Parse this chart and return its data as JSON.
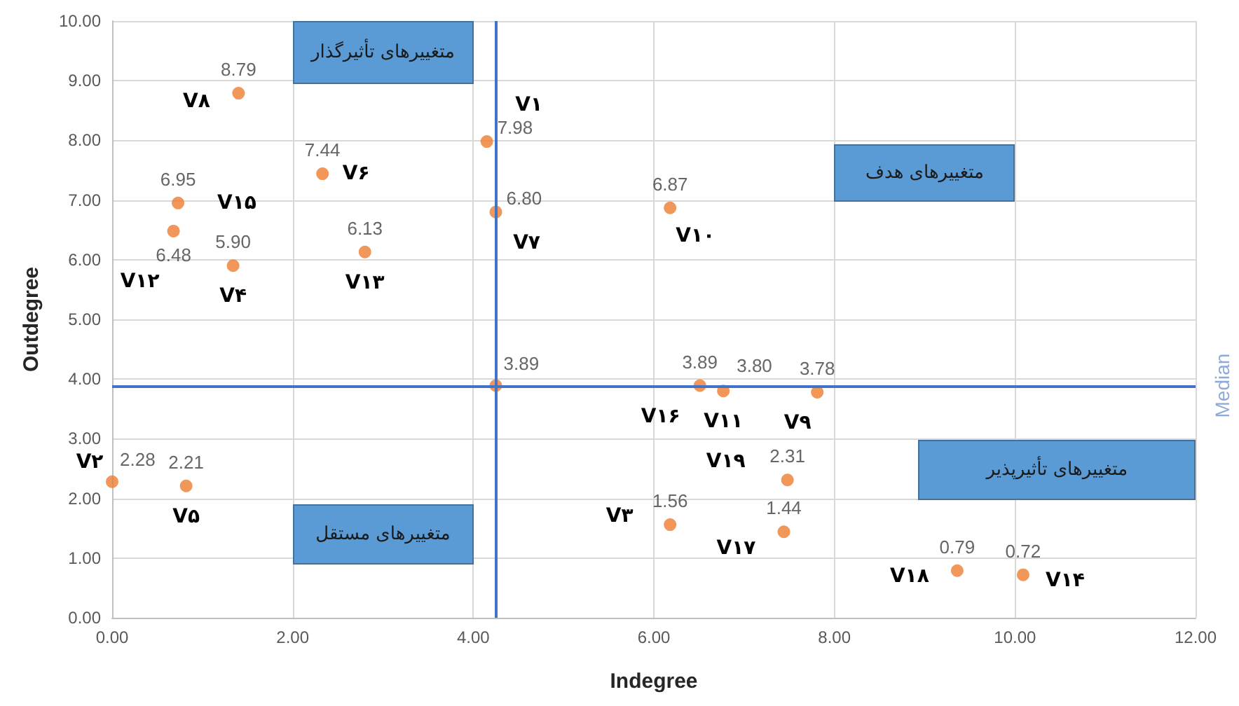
{
  "chart_data": {
    "type": "scatter",
    "xlabel": "Indegree",
    "ylabel": "Outdegree",
    "x": [
      1.4,
      4.15,
      2.33,
      4.25,
      0.73,
      0.68,
      1.34,
      2.8,
      6.18,
      4.25,
      6.51,
      6.77,
      7.81,
      7.48,
      6.18,
      7.44,
      9.36,
      10.09,
      0.0,
      0.82
    ],
    "values": [
      8.79,
      7.98,
      7.44,
      6.8,
      6.95,
      6.48,
      5.9,
      6.13,
      6.87,
      3.89,
      3.89,
      3.8,
      3.78,
      2.31,
      1.56,
      1.44,
      0.79,
      0.72,
      2.28,
      2.21
    ],
    "value_labels": [
      "8.79",
      "7.98",
      "7.44",
      "6.80",
      "6.95",
      "6.48",
      "5.90",
      "6.13",
      "6.87",
      "3.89",
      "3.89",
      "3.80",
      "3.78",
      "2.31",
      "1.56",
      "1.44",
      "0.79",
      "0.72",
      "2.28",
      "2.21"
    ],
    "color": "#ed7d31",
    "marker": "circle",
    "grid": true,
    "xlim": [
      0,
      12
    ],
    "xticks": [
      {
        "value": 0,
        "label": "0.00"
      },
      {
        "value": 2,
        "label": "2.00"
      },
      {
        "value": 4,
        "label": "4.00"
      },
      {
        "value": 6,
        "label": "6.00"
      },
      {
        "value": 8,
        "label": "8.00"
      },
      {
        "value": 10,
        "label": "10.00"
      },
      {
        "value": 12,
        "label": "12.00"
      }
    ],
    "ylim": [
      0,
      10
    ],
    "yticks": [
      {
        "value": 0,
        "label": "0.00"
      },
      {
        "value": 1,
        "label": "1.00"
      },
      {
        "value": 2,
        "label": "2.00"
      },
      {
        "value": 3,
        "label": "3.00"
      },
      {
        "value": 4,
        "label": "4.00"
      },
      {
        "value": 5,
        "label": "5.00"
      },
      {
        "value": 6,
        "label": "6.00"
      },
      {
        "value": 7,
        "label": "7.00"
      },
      {
        "value": 8,
        "label": "8.00"
      },
      {
        "value": 9,
        "label": "9.00"
      },
      {
        "value": 10,
        "label": "10.00"
      }
    ],
    "ref_lines": [
      {
        "axis": "x",
        "value": 4.25,
        "color": "#4472c4"
      },
      {
        "axis": "y",
        "value": 3.89,
        "label": "Median",
        "color": "#4472c4"
      }
    ],
    "annotations": [
      {
        "text": "V۸",
        "x": 1.4,
        "y": 8.79
      },
      {
        "text": "V۱",
        "x": 4.15,
        "y": 7.98
      },
      {
        "text": "V۶",
        "x": 2.33,
        "y": 7.44
      },
      {
        "text": "V۷",
        "x": 4.25,
        "y": 6.8
      },
      {
        "text": "V۱۵",
        "x": 0.73,
        "y": 6.95
      },
      {
        "text": "V۱۲",
        "x": 0.68,
        "y": 6.48
      },
      {
        "text": "V۴",
        "x": 1.34,
        "y": 5.9
      },
      {
        "text": "V۱۳",
        "x": 2.8,
        "y": 6.13
      },
      {
        "text": "V۱۰",
        "x": 6.18,
        "y": 6.87
      },
      {
        "text": "V۱۶",
        "x": 6.51,
        "y": 3.89
      },
      {
        "text": "V۱۱",
        "x": 6.77,
        "y": 3.8
      },
      {
        "text": "V۹",
        "x": 7.81,
        "y": 3.78
      },
      {
        "text": "V۱۹",
        "x": 7.48,
        "y": 2.31
      },
      {
        "text": "V۳",
        "x": 6.18,
        "y": 1.56
      },
      {
        "text": "V۱۷",
        "x": 7.44,
        "y": 1.44
      },
      {
        "text": "V۱۸",
        "x": 9.36,
        "y": 0.79
      },
      {
        "text": "V۱۴",
        "x": 10.09,
        "y": 0.72
      },
      {
        "text": "V۲",
        "x": 0.0,
        "y": 2.28
      },
      {
        "text": "V۵",
        "x": 0.82,
        "y": 2.21
      },
      "متغییرهای تأثیرگذار",
      "متغییرهای هدف",
      "متغییرهای تأثیرپذیر",
      "متغییرهای مستقل"
    ]
  }
}
